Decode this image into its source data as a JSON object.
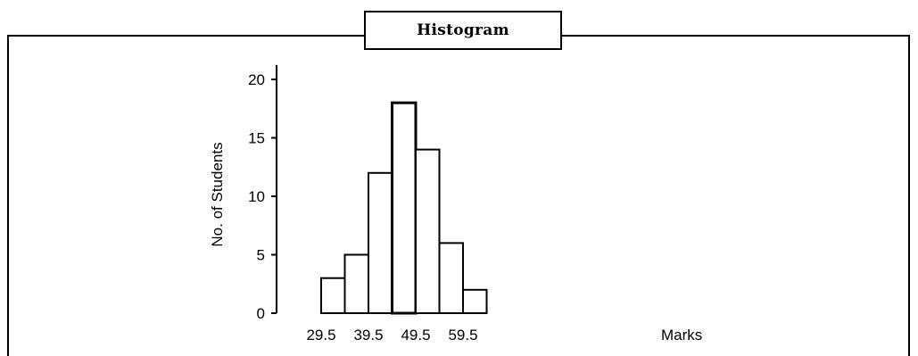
{
  "chart_data": {
    "type": "bar",
    "title": "Histogram",
    "ylabel": "No. of Students",
    "xlabel": "Marks",
    "bin_edges": [
      29.5,
      34.5,
      39.5,
      44.5,
      49.5,
      54.5,
      59.5,
      64.5
    ],
    "values": [
      3,
      5,
      12,
      18,
      14,
      6,
      2
    ],
    "xticks": [
      "29.5",
      "39.5",
      "49.5",
      "59.5"
    ],
    "xtick_values": [
      29.5,
      39.5,
      49.5,
      59.5
    ],
    "yticks": [
      "0",
      "5",
      "10",
      "15",
      "20"
    ],
    "ytick_values": [
      0,
      5,
      10,
      15,
      20
    ],
    "ylim": [
      0,
      21
    ],
    "grid": false,
    "colors": {
      "bar_fill": "#ffffff",
      "bar_stroke": "#000000"
    }
  }
}
